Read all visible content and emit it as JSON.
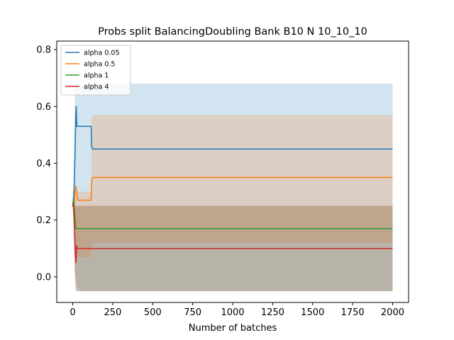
{
  "chart_data": {
    "type": "line",
    "title": "Probs split BalancingDoubling Bank B10 N 10_10_10",
    "xlabel": "Number of batches",
    "ylabel": "",
    "xlim": [
      -100,
      2100
    ],
    "ylim": [
      -0.09,
      0.83
    ],
    "xticks": [
      0,
      250,
      500,
      750,
      1000,
      1250,
      1500,
      1750,
      2000
    ],
    "xtick_labels": [
      "0",
      "250",
      "500",
      "750",
      "1000",
      "1250",
      "1500",
      "1750",
      "2000"
    ],
    "yticks": [
      0.0,
      0.2,
      0.4,
      0.6,
      0.8
    ],
    "ytick_labels": [
      "0.0",
      "0.2",
      "0.4",
      "0.6",
      "0.8"
    ],
    "grid": false,
    "legend_position": "upper-left",
    "series": [
      {
        "name": "alpha 0.05",
        "color": "#1f77b4",
        "x": [
          0,
          5,
          10,
          15,
          20,
          22,
          25,
          30,
          60,
          100,
          115,
          118,
          125,
          200,
          500,
          2000
        ],
        "y": [
          0.25,
          0.28,
          0.33,
          0.45,
          0.58,
          0.6,
          0.53,
          0.53,
          0.53,
          0.53,
          0.53,
          0.46,
          0.45,
          0.45,
          0.45,
          0.45
        ],
        "band_upper": [
          0.25,
          0.35,
          0.55,
          0.68,
          0.68,
          0.68,
          0.68,
          0.68,
          0.68,
          0.68,
          0.68,
          0.68,
          0.68,
          0.68,
          0.68,
          0.68
        ],
        "band_lower": [
          0.25,
          0.2,
          0.1,
          0.0,
          -0.04,
          -0.05,
          -0.05,
          -0.05,
          -0.05,
          -0.05,
          -0.05,
          -0.05,
          -0.05,
          -0.05,
          -0.05,
          -0.05
        ]
      },
      {
        "name": "alpha 0.5",
        "color": "#ff7f0e",
        "x": [
          0,
          5,
          10,
          15,
          20,
          25,
          30,
          60,
          100,
          115,
          118,
          125,
          200,
          500,
          2000
        ],
        "y": [
          0.25,
          0.24,
          0.26,
          0.3,
          0.32,
          0.3,
          0.27,
          0.27,
          0.27,
          0.27,
          0.34,
          0.35,
          0.35,
          0.35,
          0.35
        ],
        "band_upper": [
          0.25,
          0.27,
          0.3,
          0.3,
          0.3,
          0.3,
          0.3,
          0.3,
          0.3,
          0.3,
          0.56,
          0.57,
          0.57,
          0.57,
          0.57
        ],
        "band_lower": [
          0.25,
          0.22,
          0.14,
          0.12,
          0.08,
          0.07,
          0.07,
          0.07,
          0.07,
          0.07,
          0.12,
          0.12,
          0.12,
          0.12,
          0.12
        ]
      },
      {
        "name": "alpha 1",
        "color": "#2ca02c",
        "x": [
          0,
          5,
          10,
          15,
          20,
          30,
          60,
          120,
          500,
          2000
        ],
        "y": [
          0.25,
          0.27,
          0.24,
          0.2,
          0.17,
          0.17,
          0.17,
          0.17,
          0.17,
          0.17
        ],
        "band_upper": [
          0.25,
          0.28,
          0.27,
          0.26,
          0.25,
          0.25,
          0.25,
          0.25,
          0.25,
          0.25
        ],
        "band_lower": [
          0.25,
          0.2,
          0.08,
          0.02,
          -0.02,
          -0.04,
          -0.05,
          -0.05,
          -0.05,
          -0.05
        ]
      },
      {
        "name": "alpha 4",
        "color": "#d62728",
        "x": [
          0,
          3,
          6,
          9,
          12,
          15,
          18,
          21,
          24,
          27,
          30,
          40,
          60,
          100,
          500,
          2000
        ],
        "y": [
          0.25,
          0.26,
          0.24,
          0.2,
          0.16,
          0.11,
          0.07,
          0.05,
          0.11,
          0.1,
          0.1,
          0.1,
          0.1,
          0.1,
          0.1,
          0.1
        ],
        "band_upper": [
          0.25,
          0.26,
          0.26,
          0.25,
          0.25,
          0.25,
          0.25,
          0.25,
          0.25,
          0.25,
          0.25,
          0.25,
          0.25,
          0.25,
          0.25,
          0.25
        ],
        "band_lower": [
          0.25,
          0.2,
          0.12,
          0.05,
          0.0,
          -0.03,
          -0.04,
          -0.05,
          -0.05,
          -0.05,
          -0.05,
          -0.05,
          -0.05,
          -0.05,
          -0.05,
          -0.05
        ]
      }
    ]
  }
}
